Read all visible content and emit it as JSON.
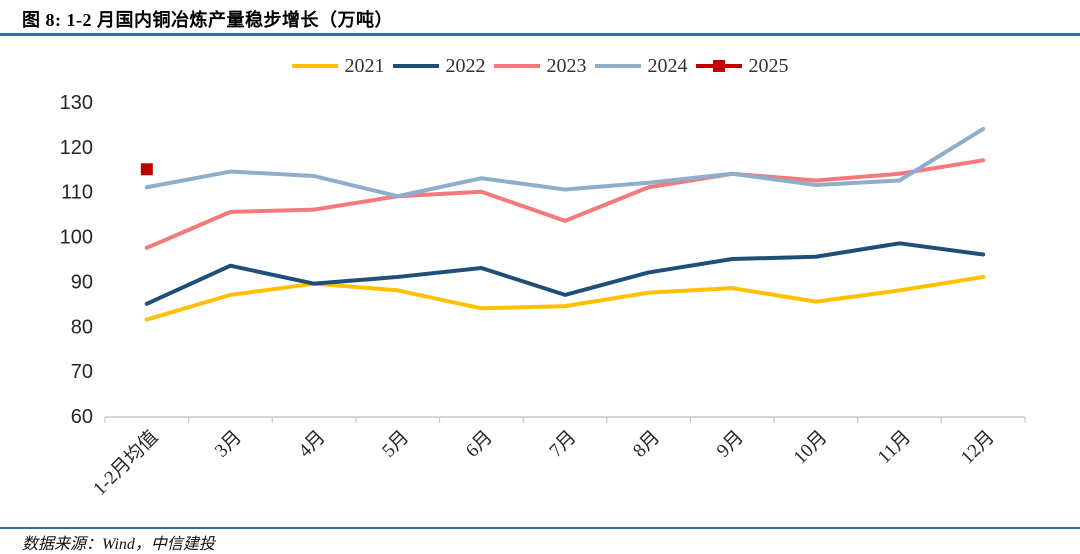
{
  "header": {
    "title": "图 8: 1-2 月国内铜冶炼产量稳步增长（万吨）"
  },
  "footer": {
    "source": "数据来源：Wind，中信建投"
  },
  "colors": {
    "accent_rule": "#2E6DA4",
    "axis_line": "#C9C9C9",
    "axis_text": "#262626"
  },
  "chart_data": {
    "type": "line",
    "title": "图 8: 1-2 月国内铜冶炼产量稳步增长（万吨）",
    "unit": "万吨",
    "categories": [
      "1-2月均值",
      "3月",
      "4月",
      "5月",
      "6月",
      "7月",
      "8月",
      "9月",
      "10月",
      "11月",
      "12月"
    ],
    "series": [
      {
        "name": "2021",
        "color": "#FFC000",
        "marker": "none",
        "values": [
          81.5,
          87,
          89.5,
          88,
          84,
          84.5,
          87.5,
          88.5,
          85.5,
          88,
          91
        ]
      },
      {
        "name": "2022",
        "color": "#1F4E79",
        "marker": "none",
        "values": [
          85,
          93.5,
          89.5,
          91,
          93,
          87,
          92,
          95,
          95.5,
          98.5,
          96
        ]
      },
      {
        "name": "2023",
        "color": "#F5797C",
        "marker": "none",
        "values": [
          97.5,
          105.5,
          106,
          109,
          110,
          103.5,
          111,
          114,
          112.5,
          114,
          117
        ]
      },
      {
        "name": "2024",
        "color": "#8FAECC",
        "marker": "none",
        "values": [
          111,
          114.5,
          113.5,
          109,
          113,
          110.5,
          112,
          114,
          111.5,
          112.5,
          124
        ]
      },
      {
        "name": "2025",
        "color": "#C00000",
        "marker": "square",
        "values": [
          115,
          null,
          null,
          null,
          null,
          null,
          null,
          null,
          null,
          null,
          null
        ]
      }
    ],
    "ylim": [
      60,
      130
    ],
    "yticks": [
      60,
      70,
      80,
      90,
      100,
      110,
      120,
      130
    ],
    "grid": false,
    "legend_position": "top"
  }
}
